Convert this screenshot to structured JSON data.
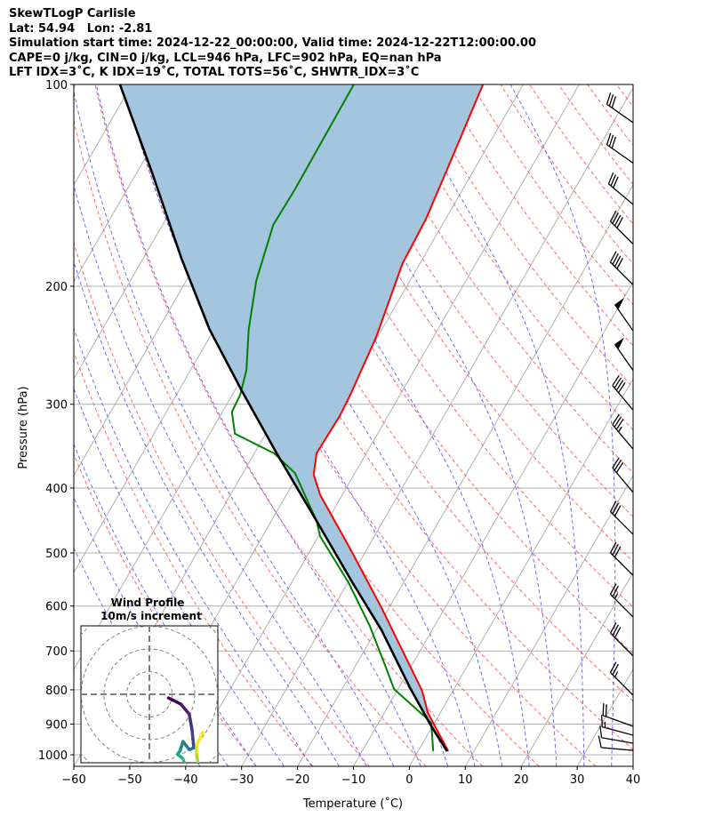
{
  "header": {
    "title": "SkewTLogP Carlisle",
    "location": "Lat: 54.94   Lon: -2.81",
    "times": "Simulation start time: 2024-12-22_00:00:00, Valid time: 2024-12-22T12:00:00.00",
    "indices_1": "CAPE=0 j/kg, CIN=0 j/kg, LCL=946 hPa, LFC=902 hPa, EQ=nan hPa",
    "indices_2": "LFT IDX=3˚C, K IDX=19˚C, TOTAL TOTS=56˚C, SHWTR_IDX=3˚C"
  },
  "chart_data": {
    "type": "line",
    "title": "SkewTLogP Carlisle",
    "xlabel": "Temperature (˚C)",
    "ylabel": "Pressure (hPa)",
    "xlim": [
      -60,
      40
    ],
    "ylim": [
      1040,
      100
    ],
    "x_ticks": [
      -60,
      -50,
      -40,
      -30,
      -20,
      -10,
      0,
      10,
      20,
      30,
      40
    ],
    "y_ticks": [
      100,
      200,
      300,
      400,
      500,
      600,
      700,
      800,
      900,
      1000
    ],
    "grid": true,
    "colors": {
      "temperature": "#ff0000",
      "dewpoint": "#008000",
      "parcel": "#000000",
      "cape_fill": "#a3c6de",
      "isotherm": "#b0b0b0",
      "dry_adiabat": "#ff6666",
      "moist_adiabat": "#6a6aff"
    },
    "series": [
      {
        "name": "temperature",
        "p": [
          988,
          866,
          803,
          604,
          489,
          410,
          382,
          355,
          312,
          290,
          239,
          185,
          159,
          133,
          100
        ],
        "t": [
          5.4,
          -2.2,
          -5.5,
          -21.3,
          -33.5,
          -43.9,
          -47.2,
          -48.9,
          -48.6,
          -48.9,
          -50.2,
          -53.1,
          -53.5,
          -54.9,
          -57.2
        ]
      },
      {
        "name": "dewpoint",
        "p": [
          988,
          898,
          885,
          798,
          735,
          642,
          553,
          472,
          448,
          380,
          355,
          332,
          308,
          290,
          267,
          232,
          196,
          162,
          143,
          100
        ],
        "t": [
          2.7,
          -0.5,
          -1.6,
          -10.7,
          -14.8,
          -21.6,
          -29.9,
          -39.7,
          -41.9,
          -50.7,
          -56.5,
          -65.5,
          -68.3,
          -68.6,
          -70.0,
          -73.8,
          -77.5,
          -80.2,
          -80.0,
          -80.3
        ]
      },
      {
        "name": "parcel",
        "p": [
          988,
          907,
          793,
          652,
          553,
          448,
          357,
          286,
          232,
          182,
          135,
          100
        ],
        "t": [
          5.2,
          -0.2,
          -8.1,
          -19.0,
          -29.2,
          -41.9,
          -55.7,
          -68.8,
          -80.8,
          -93.1,
          -107.4,
          -122.1
        ]
      }
    ],
    "wind_barbs": [
      {
        "p": 114,
        "dir": 305,
        "kt": 30
      },
      {
        "p": 131,
        "dir": 305,
        "kt": 30
      },
      {
        "p": 151,
        "dir": 310,
        "kt": 30
      },
      {
        "p": 173,
        "dir": 315,
        "kt": 40
      },
      {
        "p": 199,
        "dir": 315,
        "kt": 40
      },
      {
        "p": 233,
        "dir": 325,
        "kt": 50
      },
      {
        "p": 267,
        "dir": 325,
        "kt": 50
      },
      {
        "p": 306,
        "dir": 320,
        "kt": 40
      },
      {
        "p": 350,
        "dir": 320,
        "kt": 35
      },
      {
        "p": 406,
        "dir": 320,
        "kt": 30
      },
      {
        "p": 469,
        "dir": 315,
        "kt": 30
      },
      {
        "p": 540,
        "dir": 315,
        "kt": 30
      },
      {
        "p": 623,
        "dir": 315,
        "kt": 25
      },
      {
        "p": 712,
        "dir": 315,
        "kt": 30
      },
      {
        "p": 815,
        "dir": 315,
        "kt": 25
      },
      {
        "p": 907,
        "dir": 290,
        "kt": 20
      },
      {
        "p": 935,
        "dir": 285,
        "kt": 15
      },
      {
        "p": 961,
        "dir": 280,
        "kt": 10
      },
      {
        "p": 985,
        "dir": 275,
        "kt": 10
      }
    ],
    "hodograph": {
      "title": "Wind Profile",
      "subtitle": "10m/s increment",
      "ring_step_ms": 10,
      "u": [
        8.4,
        14.0,
        17.6,
        18.8,
        19.6,
        17.6,
        14.8,
        13.6,
        12.4,
        14.8,
        16.8,
        22.0,
        20.8,
        20.8,
        23.6
      ],
      "v": [
        -1.6,
        -4.4,
        -8.8,
        -15.6,
        -23.6,
        -24.4,
        -20.8,
        -24.8,
        -26.4,
        -28.4,
        -34.0,
        -34.0,
        -26.4,
        -22.4,
        -16.8
      ]
    }
  }
}
